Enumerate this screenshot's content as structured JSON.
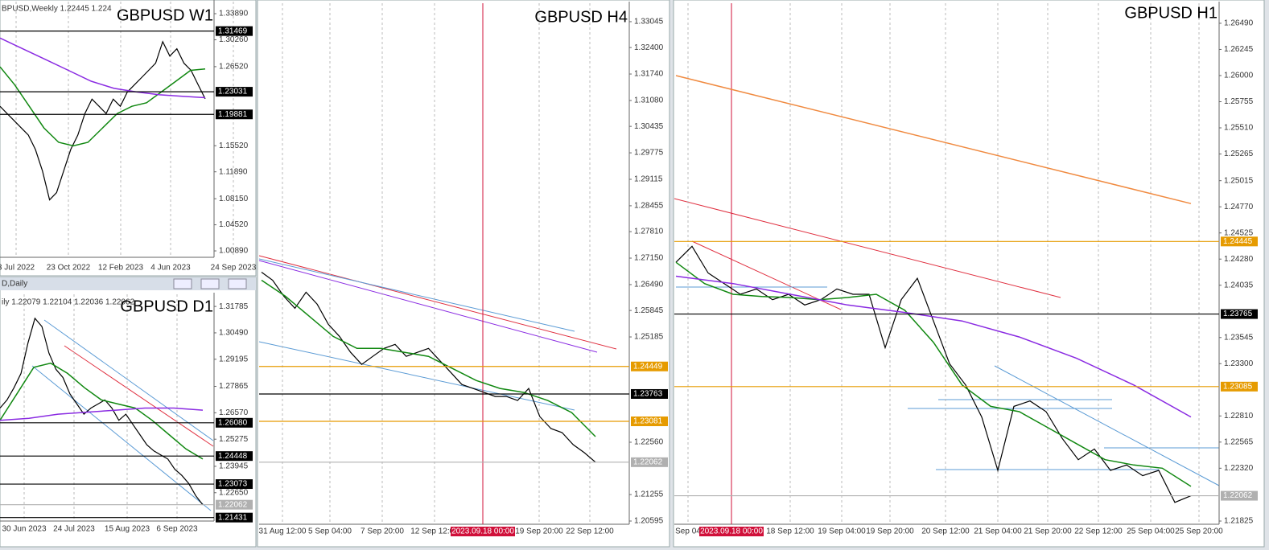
{
  "panes": [
    {
      "title": "GBPUSD W1",
      "header": "BPUSD,Weekly  1.22445  1.224",
      "ylim": [
        1.0,
        1.35568
      ],
      "yticks": [
        {
          "value": 1.3389,
          "label": "1.33890"
        },
        {
          "value": 1.3026,
          "label": "1.30260"
        },
        {
          "value": 1.2652,
          "label": "1.26520"
        },
        {
          "value": 1.1552,
          "label": "1.15520"
        },
        {
          "value": 1.1189,
          "label": "1.11890"
        },
        {
          "value": 1.0815,
          "label": "1.08150"
        },
        {
          "value": 1.0452,
          "label": "1.04520"
        },
        {
          "value": 1.0089,
          "label": "1.00890"
        }
      ],
      "levels": [
        {
          "value": 1.31469,
          "label": "1.31469",
          "color": "#000000"
        },
        {
          "value": 1.23031,
          "label": "1.23031",
          "color": "#000000"
        },
        {
          "value": 1.19881,
          "label": "1.19881",
          "color": "#000000"
        }
      ],
      "xlabels": [
        "3 Jul 2022",
        "23 Oct 2022",
        "12 Feb 2023",
        "4 Jun 2023",
        "24 Sep 2023"
      ],
      "series": [
        {
          "color": "#000000",
          "values": [
            1.21,
            1.2,
            1.19,
            1.18,
            1.17,
            1.15,
            1.12,
            1.08,
            1.09,
            1.12,
            1.15,
            1.17,
            1.2,
            1.22,
            1.21,
            1.2,
            1.22,
            1.21,
            1.23,
            1.24,
            1.25,
            1.26,
            1.27,
            1.3,
            1.28,
            1.29,
            1.27,
            1.26,
            1.24,
            1.22062
          ]
        },
        {
          "color": "#118811",
          "values": [
            1.265,
            1.24,
            1.21,
            1.18,
            1.16,
            1.155,
            1.16,
            1.18,
            1.2,
            1.21,
            1.215,
            1.23,
            1.245,
            1.26,
            1.262
          ]
        },
        {
          "color": "#8a2be2",
          "values": [
            1.305,
            1.29,
            1.275,
            1.26,
            1.245,
            1.235,
            1.23,
            1.226,
            1.224,
            1.222
          ]
        }
      ]
    },
    {
      "title": "GBPUSD D1",
      "window": "D,Daily",
      "header": "ily  1.22079  1.22104  1.22036  1.22062",
      "ylim": [
        1.21261,
        1.32381
      ],
      "yticks": [
        {
          "value": 1.31785,
          "label": "1.31785"
        },
        {
          "value": 1.3049,
          "label": "1.30490"
        },
        {
          "value": 1.29195,
          "label": "1.29195"
        },
        {
          "value": 1.27865,
          "label": "1.27865"
        },
        {
          "value": 1.2657,
          "label": "1.26570"
        },
        {
          "value": 1.25275,
          "label": "1.25275"
        },
        {
          "value": 1.23945,
          "label": "1.23945"
        },
        {
          "value": 1.2265,
          "label": "1.22650"
        }
      ],
      "levels": [
        {
          "value": 1.2608,
          "label": "1.26080",
          "color": "#000000"
        },
        {
          "value": 1.24448,
          "label": "1.24448",
          "color": "#000000"
        },
        {
          "value": 1.23073,
          "label": "1.23073",
          "color": "#000000"
        },
        {
          "value": 1.22062,
          "label": "1.22062",
          "color": "#b0b0b0"
        },
        {
          "value": 1.21431,
          "label": "1.21431",
          "color": "#000000"
        }
      ],
      "xlabels": [
        "30 Jun 2023",
        "24 Jul 2023",
        "15 Aug 2023",
        "6 Sep 2023"
      ],
      "series": [
        {
          "color": "#000000",
          "values": [
            1.268,
            1.272,
            1.278,
            1.285,
            1.3,
            1.312,
            1.308,
            1.295,
            1.287,
            1.283,
            1.275,
            1.27,
            1.265,
            1.268,
            1.27,
            1.272,
            1.268,
            1.262,
            1.265,
            1.26,
            1.255,
            1.25,
            1.247,
            1.245,
            1.243,
            1.238,
            1.235,
            1.231,
            1.225,
            1.22062
          ]
        },
        {
          "color": "#118811",
          "values": [
            1.262,
            1.275,
            1.288,
            1.29,
            1.285,
            1.278,
            1.272,
            1.27,
            1.268,
            1.262,
            1.255,
            1.248,
            1.243
          ]
        },
        {
          "color": "#8a2be2",
          "values": [
            1.262,
            1.263,
            1.265,
            1.266,
            1.267,
            1.268,
            1.268,
            1.267
          ]
        }
      ]
    },
    {
      "title": "GBPUSD H4",
      "marker_label": "2023.09.18 00:00",
      "ylim": [
        1.20515,
        1.33505
      ],
      "yticks": [
        {
          "value": 1.33045,
          "label": "1.33045"
        },
        {
          "value": 1.324,
          "label": "1.32400"
        },
        {
          "value": 1.3174,
          "label": "1.31740"
        },
        {
          "value": 1.3108,
          "label": "1.31080"
        },
        {
          "value": 1.30435,
          "label": "1.30435"
        },
        {
          "value": 1.29775,
          "label": "1.29775"
        },
        {
          "value": 1.29115,
          "label": "1.29115"
        },
        {
          "value": 1.28455,
          "label": "1.28455"
        },
        {
          "value": 1.2781,
          "label": "1.27810"
        },
        {
          "value": 1.2715,
          "label": "1.27150"
        },
        {
          "value": 1.2649,
          "label": "1.26490"
        },
        {
          "value": 1.25845,
          "label": "1.25845"
        },
        {
          "value": 1.25185,
          "label": "1.25185"
        },
        {
          "value": 1.2256,
          "label": "1.22560"
        },
        {
          "value": 1.21255,
          "label": "1.21255"
        },
        {
          "value": 1.20595,
          "label": "1.20595"
        }
      ],
      "levels": [
        {
          "value": 1.24449,
          "label": "1.24449",
          "color": "#e69b00"
        },
        {
          "value": 1.23763,
          "label": "1.23763",
          "color": "#000000"
        },
        {
          "value": 1.23081,
          "label": "1.23081",
          "color": "#e69b00"
        },
        {
          "value": 1.22062,
          "label": "1.22062",
          "color": "#b0b0b0"
        }
      ],
      "xlabels": [
        "31 Aug 12:00",
        "5 Sep 04:00",
        "7 Sep 20:00",
        "12 Sep 12:00",
        "19 Sep 20:00",
        "22 Sep 12:00"
      ],
      "series": [
        {
          "color": "#000000",
          "values": [
            1.268,
            1.266,
            1.262,
            1.259,
            1.263,
            1.26,
            1.255,
            1.252,
            1.248,
            1.245,
            1.247,
            1.249,
            1.25,
            1.247,
            1.248,
            1.249,
            1.246,
            1.243,
            1.24,
            1.239,
            1.238,
            1.237,
            1.237,
            1.236,
            1.239,
            1.232,
            1.229,
            1.228,
            1.225,
            1.223,
            1.22062
          ]
        },
        {
          "color": "#118811",
          "values": [
            1.266,
            1.262,
            1.257,
            1.252,
            1.249,
            1.249,
            1.248,
            1.247,
            1.244,
            1.241,
            1.239,
            1.238,
            1.236,
            1.233,
            1.227
          ]
        }
      ]
    },
    {
      "title": "GBPUSD H1",
      "marker_label": "2023.09.18 00:00",
      "ylim": [
        1.21795,
        1.26678
      ],
      "yticks": [
        {
          "value": 1.2649,
          "label": "1.26490"
        },
        {
          "value": 1.26245,
          "label": "1.26245"
        },
        {
          "value": 1.26,
          "label": "1.26000"
        },
        {
          "value": 1.25755,
          "label": "1.25755"
        },
        {
          "value": 1.2551,
          "label": "1.25510"
        },
        {
          "value": 1.25265,
          "label": "1.25265"
        },
        {
          "value": 1.25015,
          "label": "1.25015"
        },
        {
          "value": 1.2477,
          "label": "1.24770"
        },
        {
          "value": 1.24525,
          "label": "1.24525"
        },
        {
          "value": 1.2428,
          "label": "1.24280"
        },
        {
          "value": 1.24035,
          "label": "1.24035"
        },
        {
          "value": 1.23545,
          "label": "1.23545"
        },
        {
          "value": 1.233,
          "label": "1.23300"
        },
        {
          "value": 1.2281,
          "label": "1.22810"
        },
        {
          "value": 1.22565,
          "label": "1.22565"
        },
        {
          "value": 1.2232,
          "label": "1.22320"
        },
        {
          "value": 1.21825,
          "label": "1.21825"
        }
      ],
      "levels": [
        {
          "value": 1.24445,
          "label": "1.24445",
          "color": "#e69b00"
        },
        {
          "value": 1.23765,
          "label": "1.23765",
          "color": "#000000"
        },
        {
          "value": 1.23085,
          "label": "1.23085",
          "color": "#e69b00"
        },
        {
          "value": 1.22062,
          "label": "1.22062",
          "color": "#b0b0b0"
        }
      ],
      "xlabels": [
        "Sep 04",
        "18 Sep 12:00",
        "19 Sep 04:00",
        "19 Sep 20:00",
        "20 Sep 12:00",
        "21 Sep 04:00",
        "21 Sep 20:00",
        "22 Sep 12:00",
        "25 Sep 04:00",
        "25 Sep 20:00"
      ],
      "series": [
        {
          "color": "#000000",
          "values": [
            1.2425,
            1.244,
            1.2415,
            1.2405,
            1.2395,
            1.24,
            1.239,
            1.2395,
            1.2385,
            1.239,
            1.24,
            1.2395,
            1.2395,
            1.2345,
            1.239,
            1.241,
            1.237,
            1.233,
            1.231,
            1.228,
            1.223,
            1.229,
            1.2295,
            1.2285,
            1.226,
            1.224,
            1.225,
            1.223,
            1.2235,
            1.2225,
            1.223,
            1.22,
            1.22062
          ]
        },
        {
          "color": "#118811",
          "values": [
            1.2425,
            1.2405,
            1.2395,
            1.2393,
            1.2392,
            1.239,
            1.2392,
            1.2395,
            1.238,
            1.235,
            1.231,
            1.229,
            1.2285,
            1.227,
            1.2255,
            1.224,
            1.2235,
            1.2232,
            1.2215
          ]
        },
        {
          "color": "#8a2be2",
          "values": [
            1.2412,
            1.2405,
            1.2395,
            1.2385,
            1.2378,
            1.237,
            1.2355,
            1.2335,
            1.231,
            1.228
          ]
        },
        {
          "color": "#f08a40",
          "values": [
            1.26,
            1.248
          ]
        }
      ]
    }
  ]
}
